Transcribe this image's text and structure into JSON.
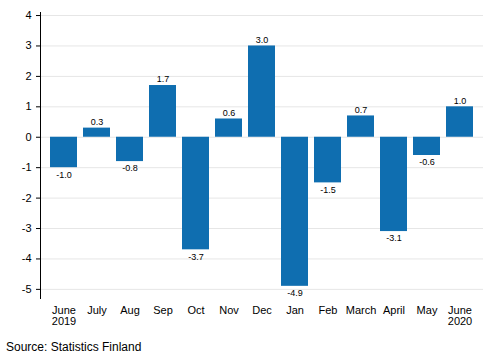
{
  "chart_data": {
    "type": "bar",
    "categories": [
      "June\n2019",
      "July",
      "Aug",
      "Sep",
      "Oct",
      "Nov",
      "Dec",
      "Jan",
      "Feb",
      "March",
      "April",
      "May",
      "June\n2020"
    ],
    "values": [
      -1.0,
      0.3,
      -0.8,
      1.7,
      -3.7,
      0.6,
      3.0,
      -4.9,
      -1.5,
      0.7,
      -3.1,
      -0.6,
      1.0
    ],
    "value_labels": [
      "-1.0",
      "0.3",
      "-0.8",
      "1.7",
      "-3.7",
      "0.6",
      "3.0",
      "-4.9",
      "-1.5",
      "0.7",
      "-3.1",
      "-0.6",
      "1.0"
    ],
    "color": "#0f6eb0",
    "ylim": [
      -5.3,
      4.1
    ],
    "yticks": [
      -5,
      -4,
      -3,
      -2,
      -1,
      0,
      1,
      2,
      3,
      4
    ],
    "grid": true,
    "data_labels": true,
    "caption": "Source: Statistics Finland"
  }
}
